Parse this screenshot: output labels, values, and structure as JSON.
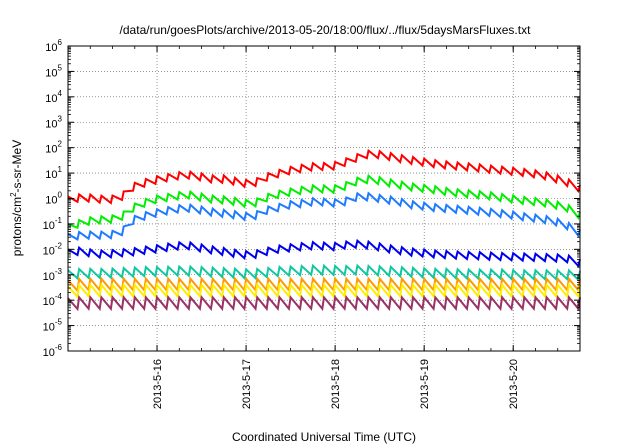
{
  "chart_data": {
    "type": "line",
    "title": "/data/run/goesPlots/archive/2013-05-20/18:00/flux/../flux/5daysMarsFluxes.txt",
    "xlabel": "Coordinated Universal Time (UTC)",
    "ylabel": {
      "pre": "protons/cm",
      "sup": "2",
      "post": "-s-sr-MeV"
    },
    "y_scale": "log",
    "ylim": [
      1e-06,
      1000000.0
    ],
    "y_ticks": [
      {
        "base": "10",
        "exp": "-6"
      },
      {
        "base": "10",
        "exp": "-5"
      },
      {
        "base": "10",
        "exp": "-4"
      },
      {
        "base": "10",
        "exp": "-3"
      },
      {
        "base": "10",
        "exp": "-2"
      },
      {
        "base": "10",
        "exp": "-1"
      },
      {
        "base": "10",
        "exp": "0"
      },
      {
        "base": "10",
        "exp": "1"
      },
      {
        "base": "10",
        "exp": "2"
      },
      {
        "base": "10",
        "exp": "3"
      },
      {
        "base": "10",
        "exp": "4"
      },
      {
        "base": "10",
        "exp": "5"
      },
      {
        "base": "10",
        "exp": "6"
      }
    ],
    "xlim": [
      "2013-05-15 00:00",
      "2013-05-20 18:00"
    ],
    "x_ticks": [
      "2013-5-16",
      "2013-5-17",
      "2013-5-18",
      "2013-5-19",
      "2013-5-20"
    ],
    "grid": true,
    "sawtooth_period_hours": 3,
    "series": [
      {
        "color": "#ff0000",
        "values": [
          1.2,
          1.5,
          1.4,
          1.2,
          1.5,
          4.0,
          6.0,
          8.0,
          10.0,
          12.0,
          10.0,
          8.0,
          8.0,
          6.0,
          5.0,
          9.0,
          13.0,
          18.0,
          22.0,
          26.0,
          24.0,
          35.0,
          55.0,
          80.0,
          70.0,
          55.0,
          45.0,
          38.0,
          32.0,
          28.0,
          25.0,
          23.0,
          20.0,
          18.0,
          16.0,
          14.0,
          12.0,
          9.0,
          6.0,
          3.5
        ]
      },
      {
        "color": "#00ee00",
        "values": [
          0.1,
          0.15,
          0.2,
          0.2,
          0.25,
          0.6,
          1.0,
          1.4,
          1.6,
          2.0,
          1.6,
          1.3,
          1.2,
          1.0,
          0.8,
          1.4,
          2.0,
          2.5,
          3.0,
          3.5,
          3.0,
          4.0,
          6.5,
          8.0,
          6.5,
          5.0,
          4.0,
          3.5,
          3.0,
          2.5,
          2.2,
          2.0,
          1.8,
          1.5,
          1.3,
          1.1,
          1.0,
          0.8,
          0.6,
          0.3
        ]
      },
      {
        "color": "#1e7bff",
        "values": [
          0.04,
          0.05,
          0.05,
          0.05,
          0.06,
          0.2,
          0.3,
          0.4,
          0.5,
          0.6,
          0.5,
          0.4,
          0.35,
          0.3,
          0.25,
          0.45,
          0.6,
          0.8,
          0.9,
          1.1,
          0.9,
          1.0,
          1.6,
          1.6,
          1.3,
          1.1,
          0.8,
          0.7,
          0.6,
          0.55,
          0.5,
          0.45,
          0.4,
          0.35,
          0.3,
          0.25,
          0.22,
          0.18,
          0.12,
          0.06
        ]
      },
      {
        "color": "#0000ee",
        "values": [
          0.01,
          0.012,
          0.009,
          0.009,
          0.01,
          0.011,
          0.013,
          0.015,
          0.018,
          0.02,
          0.016,
          0.013,
          0.011,
          0.009,
          0.008,
          0.011,
          0.014,
          0.016,
          0.018,
          0.02,
          0.017,
          0.02,
          0.022,
          0.02,
          0.016,
          0.013,
          0.011,
          0.01,
          0.009,
          0.0085,
          0.008,
          0.0078,
          0.0075,
          0.0072,
          0.007,
          0.0068,
          0.0066,
          0.0064,
          0.006,
          0.004
        ]
      },
      {
        "color": "#10c8a0",
        "values": [
          0.0015,
          0.0017,
          0.0017,
          0.0017,
          0.0018,
          0.0019,
          0.002,
          0.002,
          0.0021,
          0.0021,
          0.002,
          0.0019,
          0.0018,
          0.0017,
          0.0016,
          0.0018,
          0.002,
          0.0021,
          0.0022,
          0.0023,
          0.0022,
          0.0022,
          0.0023,
          0.0022,
          0.0021,
          0.002,
          0.0019,
          0.0018,
          0.0017,
          0.0017,
          0.0016,
          0.0016,
          0.0016,
          0.0016,
          0.0015,
          0.0015,
          0.0015,
          0.0015,
          0.0015,
          0.0014
        ]
      },
      {
        "color": "#ff9900",
        "values": [
          0.0006,
          0.0007,
          0.0007,
          0.0007,
          0.0007,
          0.0007,
          0.0007,
          0.0007,
          0.0007,
          0.0007,
          0.0007,
          0.0007,
          0.0007,
          0.0007,
          0.0007,
          0.0007,
          0.0007,
          0.0007,
          0.0007,
          0.0007,
          0.0007,
          0.0007,
          0.0007,
          0.0007,
          0.0007,
          0.0007,
          0.0007,
          0.0007,
          0.0007,
          0.0007,
          0.0007,
          0.0007,
          0.0007,
          0.0007,
          0.0007,
          0.0007,
          0.0007,
          0.0007,
          0.0007,
          0.0007
        ]
      },
      {
        "color": "#ffee00",
        "values": [
          0.00035,
          0.0004,
          0.0004,
          0.0004,
          0.0004,
          0.0004,
          0.0004,
          0.0004,
          0.0004,
          0.0004,
          0.0004,
          0.0004,
          0.0004,
          0.0004,
          0.0004,
          0.0004,
          0.0004,
          0.0004,
          0.0004,
          0.0004,
          0.0004,
          0.0004,
          0.0004,
          0.0004,
          0.0004,
          0.0004,
          0.0004,
          0.0004,
          0.0004,
          0.0004,
          0.0004,
          0.0004,
          0.0004,
          0.0004,
          0.0004,
          0.0004,
          0.0004,
          0.0004,
          0.0004,
          0.0004
        ]
      },
      {
        "color": "#993366",
        "values": [
          0.00012,
          0.00013,
          0.00013,
          0.00013,
          0.00013,
          0.00013,
          0.00013,
          0.00013,
          0.00013,
          0.00013,
          0.00013,
          0.00013,
          0.00013,
          0.00013,
          0.00013,
          0.00013,
          0.00013,
          0.00013,
          0.00013,
          0.00013,
          0.00013,
          0.00013,
          0.00013,
          0.00013,
          0.00013,
          0.00013,
          0.00013,
          0.00013,
          0.00013,
          0.00013,
          0.00013,
          0.00013,
          0.00013,
          0.00013,
          0.00013,
          0.00013,
          0.00013,
          0.00013,
          0.00013,
          0.00013
        ]
      }
    ]
  }
}
